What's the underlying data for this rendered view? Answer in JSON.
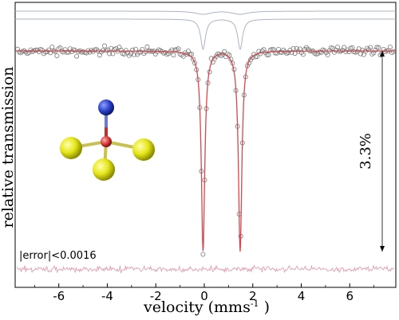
{
  "chart_data": {
    "type": "scatter",
    "title": "",
    "xlabel": "velocity   (mms",
    "xlabel_superscript": "-1",
    "xlabel_suffix": " )",
    "ylabel": "relative transmission",
    "xlim": [
      -7.8,
      7.9
    ],
    "x_ticks": [
      -6,
      -4,
      -2,
      0,
      2,
      4,
      6
    ],
    "x_tick_labels": [
      "-6",
      "-4",
      "-2",
      "0",
      "2",
      "4",
      "6"
    ],
    "depth_annotation": "3.3%",
    "error_annotation": "|error|<0.0016",
    "doublet": {
      "line1_center": -0.05,
      "line2_center": 1.48,
      "relative_depth": 0.033
    },
    "colors": {
      "fit": "#d2494f",
      "components": "#aab4c4",
      "residual": "#e0a0b0",
      "points": "#7a7a7a",
      "atom_central": "#d83a3a",
      "atom_top": "#2a40c8",
      "atom_ligand": "#e6e61a"
    },
    "molecule_icon": "tetrahedral-molecule-icon"
  }
}
